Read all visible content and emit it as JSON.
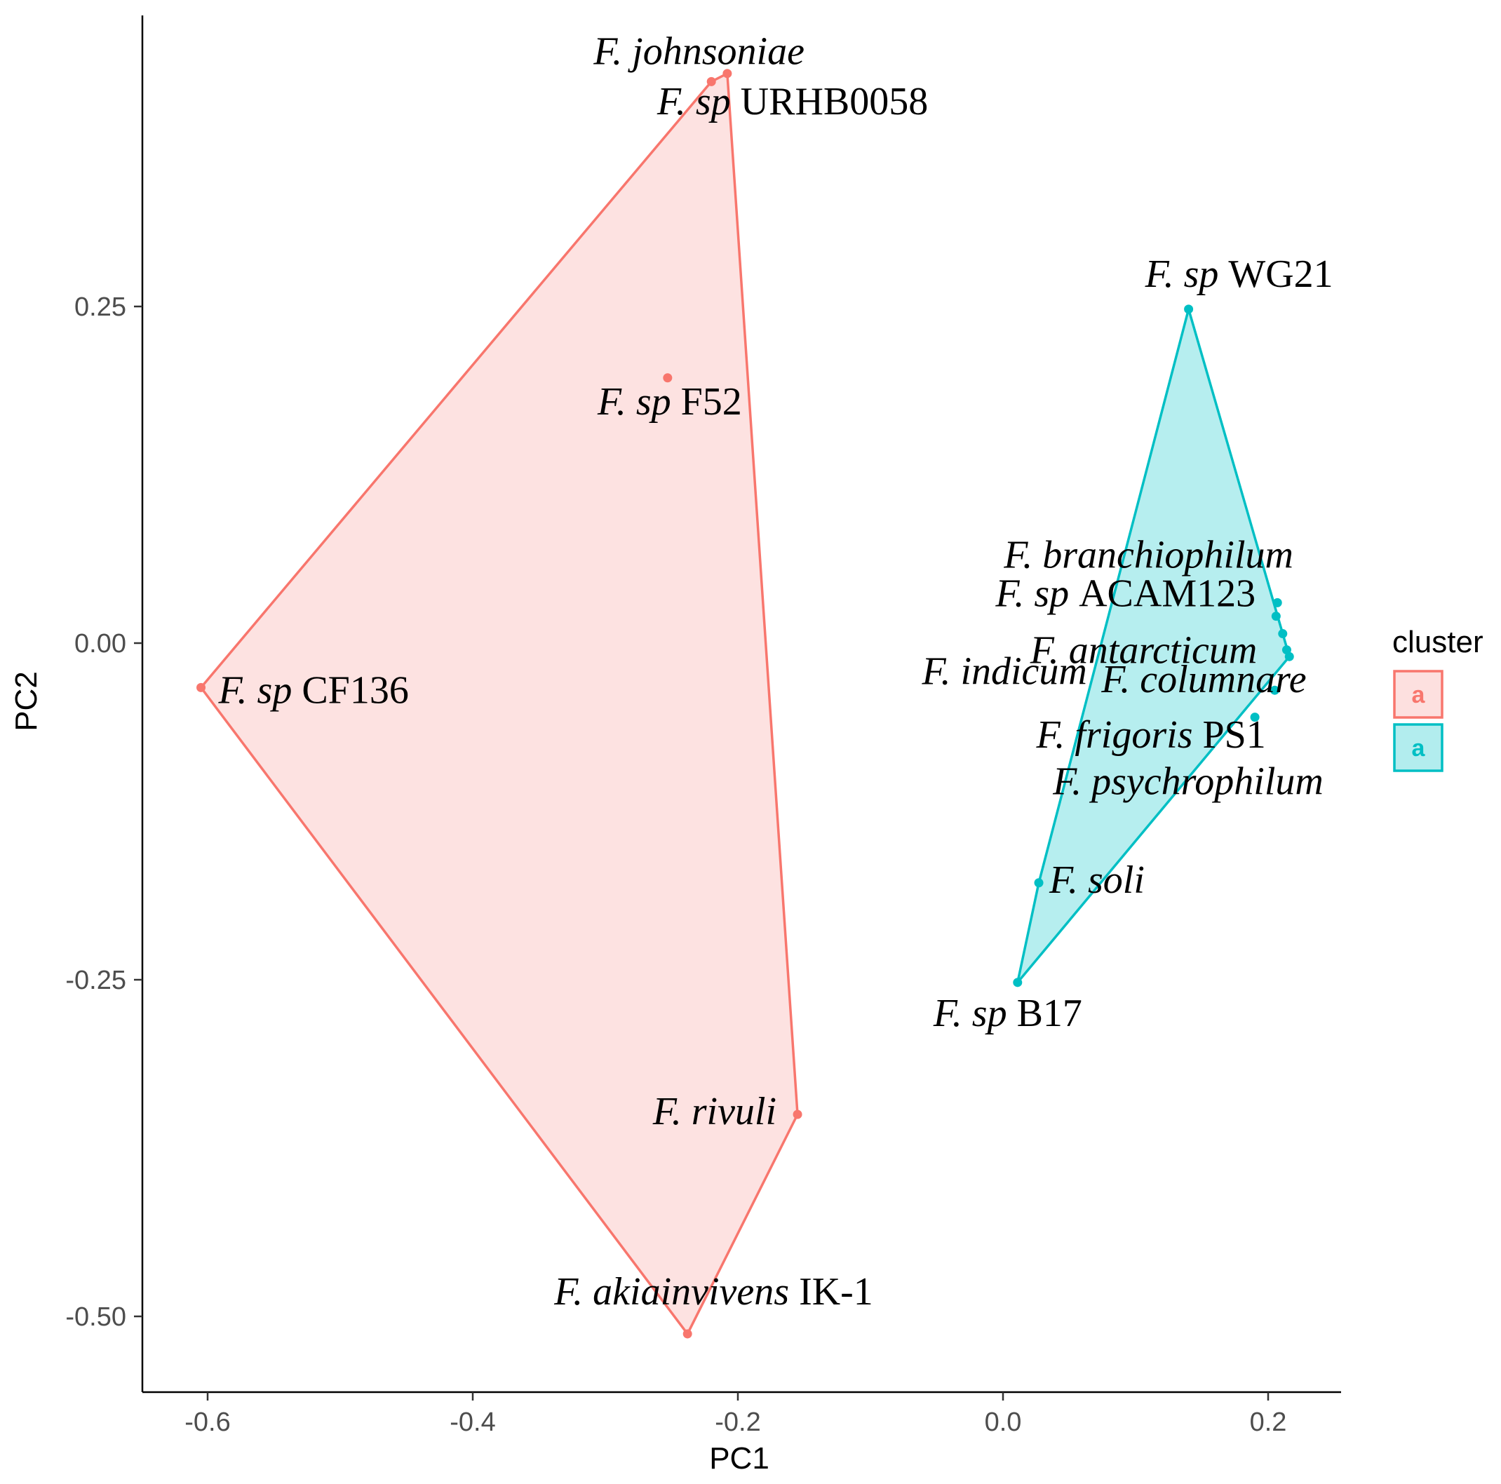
{
  "chart_data": {
    "type": "scatter",
    "xlabel": "PC1",
    "ylabel": "PC2",
    "xlim": [
      -0.65,
      0.26
    ],
    "ylim": [
      -0.555,
      0.465
    ],
    "x_ticks": [
      -0.6,
      -0.4,
      -0.2,
      0.0,
      0.2
    ],
    "x_tick_labels": [
      "-0.6",
      "-0.4",
      "-0.2",
      "0.0",
      "0.2"
    ],
    "y_ticks": [
      0.25,
      0.0,
      -0.25,
      -0.5
    ],
    "y_tick_labels": [
      "0.25",
      "0.00",
      "-0.25",
      "-0.50"
    ],
    "grid": false,
    "legend": {
      "title": "cluster",
      "position": "right",
      "glyph": "a",
      "entries": [
        {
          "color": "#F8766D",
          "fill": "#FDE0DF"
        },
        {
          "color": "#00BFC4",
          "fill": "#B2EDEE"
        }
      ]
    },
    "series": [
      {
        "color": "#F8766D",
        "fill": "#FDE0DF",
        "hull_order": [
          "F. sp CF136",
          "F. johnsoniae",
          "F. sp URHB0058",
          "F. rivuli",
          "F. akiainvivens IK-1"
        ],
        "points": [
          {
            "label": "F. johnsoniae",
            "x": -0.22,
            "y": 0.417,
            "label_parts": [
              {
                "t": "F. johnsoniae",
                "i": true
              }
            ]
          },
          {
            "label": "F. sp URHB0058",
            "x": -0.208,
            "y": 0.423,
            "label_parts": [
              {
                "t": "F. sp ",
                "i": true
              },
              {
                "t": "URHB0058",
                "i": false
              }
            ]
          },
          {
            "label": "F. sp F52",
            "x": -0.253,
            "y": 0.197,
            "label_parts": [
              {
                "t": "F. sp ",
                "i": true
              },
              {
                "t": "F52",
                "i": false
              }
            ]
          },
          {
            "label": "F. sp CF136",
            "x": -0.605,
            "y": -0.033,
            "label_parts": [
              {
                "t": "F. sp ",
                "i": true
              },
              {
                "t": "CF136",
                "i": false
              }
            ]
          },
          {
            "label": "F. rivuli",
            "x": -0.155,
            "y": -0.35,
            "label_parts": [
              {
                "t": "F. rivuli",
                "i": true
              }
            ]
          },
          {
            "label": "F. akiainvivens IK-1",
            "x": -0.238,
            "y": -0.513,
            "label_parts": [
              {
                "t": "F. akiainvivens ",
                "i": true
              },
              {
                "t": "IK-1",
                "i": false
              }
            ]
          }
        ]
      },
      {
        "color": "#00BFC4",
        "fill": "#B2EDEE",
        "hull_order": [
          "F. sp WG21",
          "F. columnare",
          "F. sp B17",
          "F. soli"
        ],
        "points": [
          {
            "label": "F. sp WG21",
            "x": 0.14,
            "y": 0.248,
            "label_parts": [
              {
                "t": "F. sp ",
                "i": true
              },
              {
                "t": "WG21",
                "i": false
              }
            ]
          },
          {
            "label": "F. branchiophilum",
            "x": 0.207,
            "y": 0.03,
            "label_parts": [
              {
                "t": "F. branchiophilum",
                "i": true
              }
            ]
          },
          {
            "label": "F. sp ACAM123",
            "x": 0.206,
            "y": 0.02,
            "label_parts": [
              {
                "t": "F. sp ",
                "i": true
              },
              {
                "t": "ACAM123",
                "i": false
              }
            ]
          },
          {
            "label": "F. antarcticum",
            "x": 0.211,
            "y": 0.007,
            "label_parts": [
              {
                "t": "F. antarcticum",
                "i": true
              }
            ]
          },
          {
            "label": "F. indicum",
            "x": 0.214,
            "y": -0.005,
            "label_parts": [
              {
                "t": "F. indicum",
                "i": true
              }
            ]
          },
          {
            "label": "F. columnare",
            "x": 0.216,
            "y": -0.01,
            "label_parts": [
              {
                "t": "F. columnare",
                "i": true
              }
            ]
          },
          {
            "label": "F. frigoris PS1",
            "x": 0.205,
            "y": -0.035,
            "label_parts": [
              {
                "t": "F. frigoris ",
                "i": true
              },
              {
                "t": "PS1",
                "i": false
              }
            ]
          },
          {
            "label": "F. psychrophilum",
            "x": 0.19,
            "y": -0.055,
            "label_parts": [
              {
                "t": "F. psychrophilum",
                "i": true
              }
            ]
          },
          {
            "label": "F. soli",
            "x": 0.027,
            "y": -0.178,
            "label_parts": [
              {
                "t": "F. soli",
                "i": true
              }
            ]
          },
          {
            "label": "F. sp B17",
            "x": 0.011,
            "y": -0.252,
            "label_parts": [
              {
                "t": "F. sp ",
                "i": true
              },
              {
                "t": "B17",
                "i": false
              }
            ]
          }
        ]
      }
    ]
  }
}
